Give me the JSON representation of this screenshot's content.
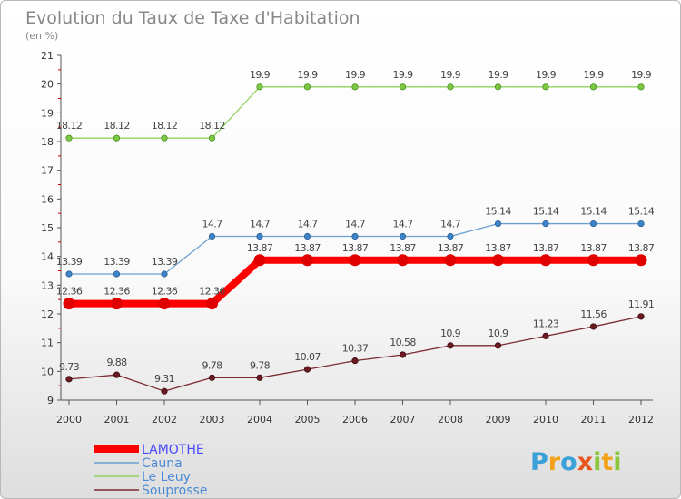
{
  "chart_data": {
    "type": "line",
    "title": "Evolution du Taux de Taxe d'Habitation",
    "subtitle": "(en %)",
    "x": [
      "2000",
      "2001",
      "2002",
      "2003",
      "2004",
      "2005",
      "2006",
      "2007",
      "2008",
      "2009",
      "2010",
      "2011",
      "2012"
    ],
    "ylim": [
      9,
      21
    ],
    "yticks": [
      9,
      10,
      11,
      12,
      13,
      14,
      15,
      16,
      17,
      18,
      19,
      20,
      21
    ],
    "grid": false,
    "legend_position": "bottom-left",
    "series": [
      {
        "name": "LAMOTHE",
        "color": "#ff0000",
        "values": [
          12.36,
          12.36,
          12.36,
          12.36,
          13.87,
          13.87,
          13.87,
          13.87,
          13.87,
          13.87,
          13.87,
          13.87,
          13.87
        ],
        "labels": [
          "12.36",
          "12.36",
          "12.36",
          "12.36",
          "13.87",
          "13.87",
          "13.87",
          "13.87",
          "13.87",
          "13.87",
          "13.87",
          "13.87",
          "13.87"
        ]
      },
      {
        "name": "Cauna",
        "color": "#6c9fd0",
        "values": [
          13.39,
          13.39,
          13.39,
          14.7,
          14.7,
          14.7,
          14.7,
          14.7,
          14.7,
          15.14,
          15.14,
          15.14,
          15.14
        ],
        "labels": [
          "13.39",
          "13.39",
          "13.39",
          "14.7",
          "14.7",
          "14.7",
          "14.7",
          "14.7",
          "14.7",
          "15.14",
          "15.14",
          "15.14",
          "15.14"
        ]
      },
      {
        "name": "Le Leuy",
        "color": "#8fd45e",
        "values": [
          18.12,
          18.12,
          18.12,
          18.12,
          19.9,
          19.9,
          19.9,
          19.9,
          19.9,
          19.9,
          19.9,
          19.9,
          19.9
        ],
        "labels": [
          "18.12",
          "18.12",
          "18.12",
          "18.12",
          "19.9",
          "19.9",
          "19.9",
          "19.9",
          "19.9",
          "19.9",
          "19.9",
          "19.9",
          "19.9"
        ]
      },
      {
        "name": "Souprosse",
        "color": "#7a2a32",
        "values": [
          9.73,
          9.88,
          9.31,
          9.78,
          9.78,
          10.07,
          10.37,
          10.58,
          10.9,
          10.9,
          11.23,
          11.56,
          11.91
        ],
        "labels": [
          "9.73",
          "9.88",
          "9.31",
          "9.78",
          "9.78",
          "10.07",
          "10.37",
          "10.58",
          "10.9",
          "10.9",
          "11.23",
          "11.56",
          "11.91"
        ]
      }
    ]
  },
  "legend_text_colors": [
    "#4a4aff",
    "#4a8ad6",
    "#4a8ad6",
    "#4a8ad6"
  ],
  "logo": {
    "text": "Proxiti",
    "letter_colors": [
      "#3aa0d8",
      "#f2a31b",
      "#3aa0d8",
      "#e8541b",
      "#8cc63f",
      "#f2a31b",
      "#8cc63f"
    ]
  }
}
